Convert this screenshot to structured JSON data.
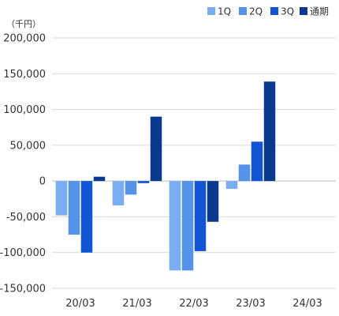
{
  "chart_data": {
    "type": "bar",
    "unit_label": "（千円）",
    "categories": [
      "20/03",
      "21/03",
      "22/03",
      "23/03",
      "24/03"
    ],
    "series": [
      {
        "name": "1Q",
        "color": "#7aaef2",
        "values": [
          -48000,
          -34000,
          -125000,
          -11000,
          null
        ]
      },
      {
        "name": "2Q",
        "color": "#5593ea",
        "values": [
          -75000,
          -19000,
          -125000,
          23000,
          null
        ]
      },
      {
        "name": "3Q",
        "color": "#1155d6",
        "values": [
          -100000,
          -3000,
          -98000,
          55000,
          null
        ]
      },
      {
        "name": "通期",
        "color": "#0a3a8f",
        "values": [
          6000,
          90000,
          -57000,
          139000,
          null
        ]
      }
    ],
    "ylim": [
      -150000,
      200000
    ],
    "yticks": [
      200000,
      150000,
      100000,
      50000,
      0,
      -50000,
      -100000,
      -150000
    ],
    "ytick_labels": [
      "200,000",
      "150,000",
      "100,000",
      "50,000",
      "0",
      "-50,000",
      "-100,000",
      "-150,000"
    ],
    "grid": true,
    "legend_position": "top-right"
  }
}
